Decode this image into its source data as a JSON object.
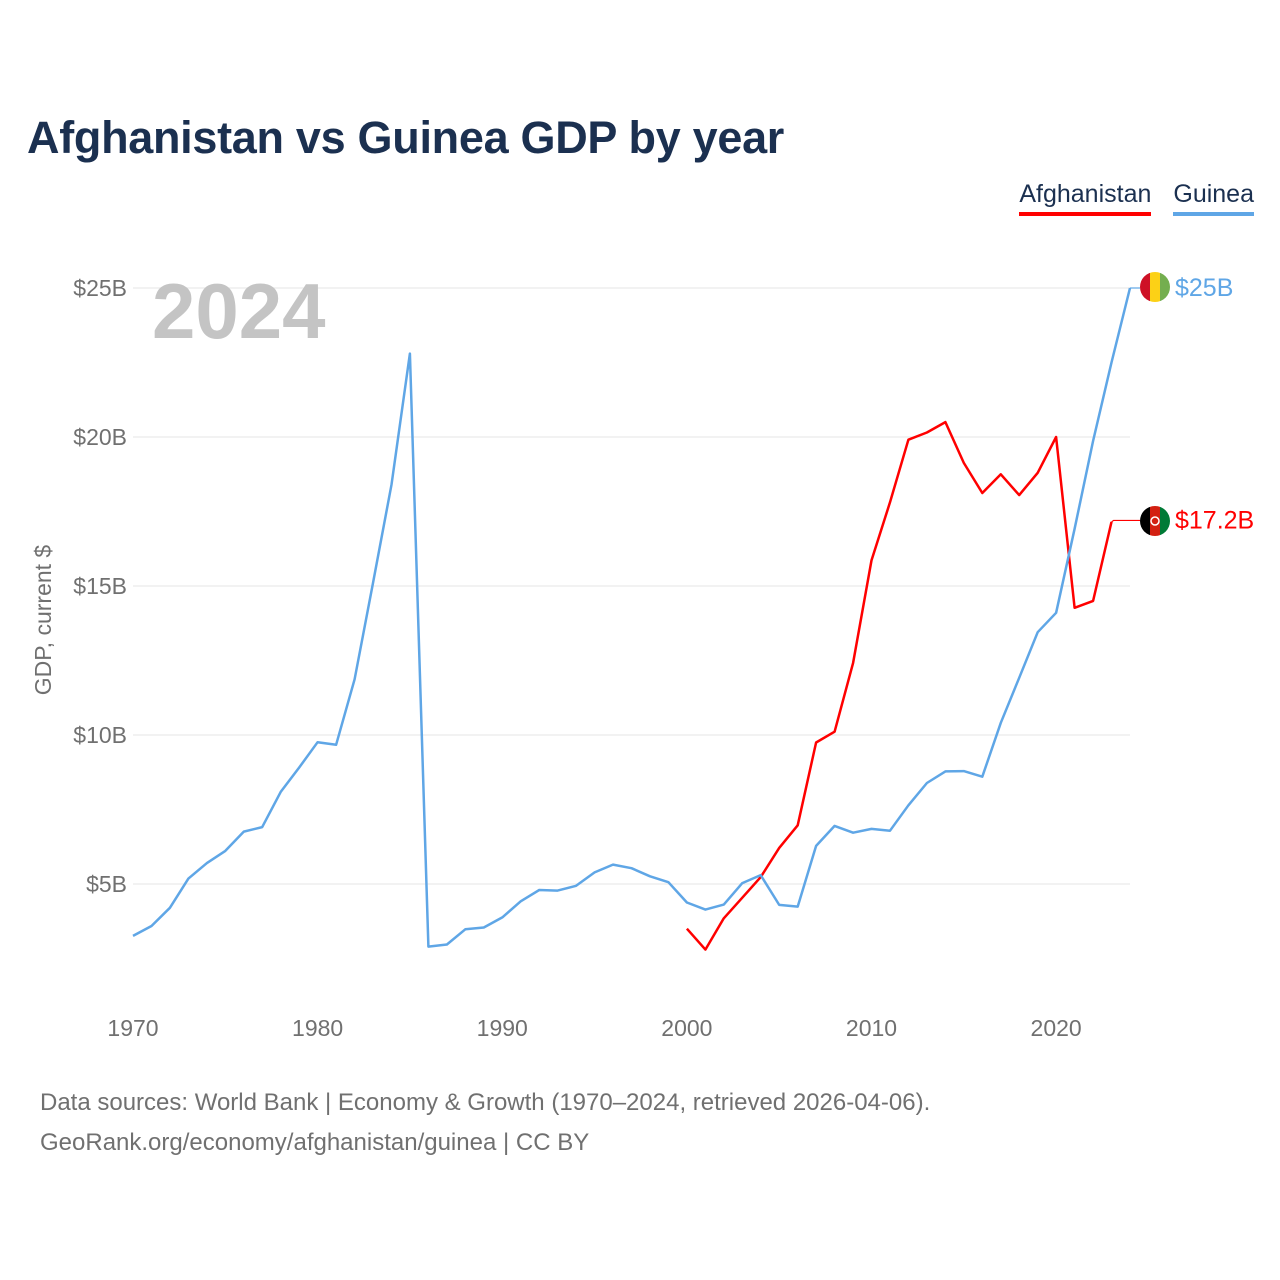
{
  "header": {
    "title": "Afghanistan vs Guinea GDP by year"
  },
  "legend": {
    "afghanistan": "Afghanistan",
    "guinea": "Guinea"
  },
  "colors": {
    "afghanistan": "#ff0000",
    "guinea": "#5fa6e6",
    "title": "#1b3050",
    "grid": "#e6e6e6",
    "axis_text": "#707070"
  },
  "footer": {
    "line1": "Data sources: World Bank | Economy & Growth (1970–2024, retrieved 2026-04-06).",
    "line2": "GeoRank.org/economy/afghanistan/guinea | CC BY"
  },
  "chart_data": {
    "type": "line",
    "title": "Afghanistan vs Guinea GDP by year",
    "ylabel": "GDP, current $",
    "xlabel": "",
    "current_year_label": "2024",
    "xlim": [
      1970,
      2024
    ],
    "ylim": [
      0,
      25
    ],
    "xticks": [
      1970,
      1980,
      1990,
      2000,
      2010,
      2020
    ],
    "yticks": [
      {
        "value": 5,
        "label": "$5B"
      },
      {
        "value": 10,
        "label": "$10B"
      },
      {
        "value": 15,
        "label": "$15B"
      },
      {
        "value": 20,
        "label": "$20B"
      },
      {
        "value": 25,
        "label": "$25B"
      }
    ],
    "grid": true,
    "legend_position": "top-right",
    "series": [
      {
        "name": "Afghanistan",
        "flag": "afghanistan-flag-icon",
        "end_label": "$17.2B",
        "end_value": 17.2,
        "x": [
          2000,
          2001,
          2002,
          2003,
          2004,
          2005,
          2006,
          2007,
          2008,
          2009,
          2010,
          2011,
          2012,
          2013,
          2014,
          2015,
          2016,
          2017,
          2018,
          2019,
          2020,
          2021,
          2022,
          2023
        ],
        "values": [
          3.5,
          2.8,
          3.85,
          4.54,
          5.23,
          6.21,
          6.97,
          9.75,
          10.11,
          12.42,
          15.86,
          17.81,
          19.91,
          20.15,
          20.5,
          19.13,
          18.12,
          18.75,
          18.05,
          18.8,
          20.0,
          14.27,
          14.5,
          17.15
        ]
      },
      {
        "name": "Guinea",
        "flag": "guinea-flag-icon",
        "end_label": "$25B",
        "end_value": 25.0,
        "x": [
          1970,
          1971,
          1972,
          1973,
          1974,
          1975,
          1976,
          1977,
          1978,
          1979,
          1980,
          1981,
          1982,
          1983,
          1984,
          1985,
          1986,
          1987,
          1988,
          1989,
          1990,
          1991,
          1992,
          1993,
          1994,
          1995,
          1996,
          1997,
          1998,
          1999,
          2000,
          2001,
          2002,
          2003,
          2004,
          2005,
          2006,
          2007,
          2008,
          2009,
          2010,
          2011,
          2012,
          2013,
          2014,
          2015,
          2016,
          2017,
          2018,
          2019,
          2020,
          2021,
          2022,
          2023,
          2024
        ],
        "values": [
          3.26,
          3.59,
          4.2,
          5.18,
          5.7,
          6.11,
          6.76,
          6.91,
          8.09,
          8.91,
          9.76,
          9.67,
          11.87,
          15.1,
          18.4,
          22.8,
          2.9,
          2.97,
          3.48,
          3.54,
          3.88,
          4.42,
          4.8,
          4.78,
          4.94,
          5.39,
          5.65,
          5.53,
          5.26,
          5.06,
          4.38,
          4.14,
          4.31,
          5.03,
          5.3,
          4.3,
          4.24,
          6.28,
          6.95,
          6.72,
          6.85,
          6.79,
          7.64,
          8.39,
          8.78,
          8.79,
          8.6,
          10.41,
          11.92,
          13.45,
          14.1,
          16.92,
          19.87,
          22.5,
          25.0
        ]
      }
    ]
  }
}
